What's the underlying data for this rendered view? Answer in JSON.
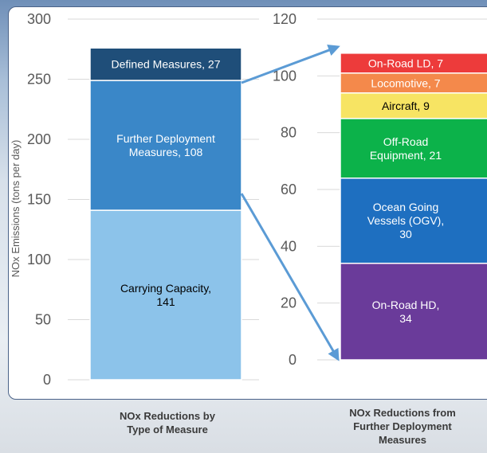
{
  "chart_data": [
    {
      "type": "bar",
      "stacked": true,
      "ylabel": "NOx Emissions (tons per day)",
      "ylim": [
        0,
        300
      ],
      "yticks": [
        0,
        50,
        100,
        150,
        200,
        250,
        300
      ],
      "grid": true,
      "title": "NOx Reductions by Type of Measure",
      "segments": [
        {
          "name": "Carrying Capacity",
          "value": 141,
          "color": "#8cc3ea",
          "text_color": "#000000",
          "lines": [
            "Carrying Capacity,",
            "141"
          ]
        },
        {
          "name": "Further Deployment Measures",
          "value": 108,
          "color": "#3a87c8",
          "text_color": "#ffffff",
          "lines": [
            "Further Deployment",
            "Measures, 108"
          ]
        },
        {
          "name": "Defined Measures",
          "value": 27,
          "color": "#1f4e79",
          "text_color": "#ffffff",
          "lines": [
            "Defined Measures, 27"
          ]
        }
      ]
    },
    {
      "type": "bar",
      "stacked": true,
      "ylim": [
        0,
        120
      ],
      "yticks": [
        0,
        20,
        40,
        60,
        80,
        100,
        120
      ],
      "grid": true,
      "title": "NOx Reductions from Further Deployment Measures",
      "segments": [
        {
          "name": "On-Road HD",
          "value": 34,
          "color": "#6a3b9a",
          "text_color": "#ffffff",
          "lines": [
            "On-Road HD,",
            "34"
          ]
        },
        {
          "name": "Ocean Going Vessels (OGV)",
          "value": 30,
          "color": "#1e6fc0",
          "text_color": "#ffffff",
          "lines": [
            "Ocean Going",
            "Vessels (OGV),",
            "30"
          ]
        },
        {
          "name": "Off-Road Equipment",
          "value": 21,
          "color": "#0cb24a",
          "text_color": "#ffffff",
          "lines": [
            "Off-Road",
            "Equipment, 21"
          ]
        },
        {
          "name": "Aircraft",
          "value": 9,
          "color": "#f7e463",
          "text_color": "#000000",
          "lines": [
            "Aircraft, 9"
          ]
        },
        {
          "name": "Locomotive",
          "value": 7,
          "color": "#f4894b",
          "text_color": "#ffffff",
          "lines": [
            "Locomotive, 7"
          ]
        },
        {
          "name": "On-Road LD",
          "value": 7,
          "color": "#ed3b3b",
          "text_color": "#ffffff",
          "lines": [
            "On-Road LD, 7"
          ]
        }
      ]
    }
  ],
  "colors": {
    "arrow": "#5b9bd5",
    "grid": "#d9d9d9",
    "axis_text": "#595959",
    "panel_border": "#4a6288"
  },
  "captions": {
    "left": [
      "NOx Reductions by",
      "Type of Measure"
    ],
    "right": [
      "NOx Reductions from",
      "Further Deployment",
      "Measures"
    ]
  }
}
